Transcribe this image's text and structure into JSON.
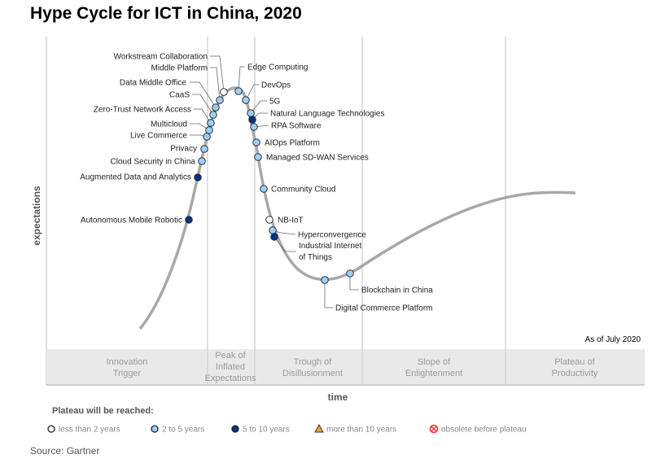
{
  "title": "Hype Cycle for ICT in China, 2020",
  "axes": {
    "y_label": "expectations",
    "x_label": "time"
  },
  "as_of": "As of July 2020",
  "phases": [
    {
      "lines": [
        "Innovation",
        "Trigger"
      ]
    },
    {
      "lines": [
        "Peak of",
        "Inflated",
        "Expectations"
      ]
    },
    {
      "lines": [
        "Trough of",
        "Disillusionment"
      ]
    },
    {
      "lines": [
        "Slope of",
        "Enlightenment"
      ]
    },
    {
      "lines": [
        "Plateau of",
        "Productivity"
      ]
    }
  ],
  "items": [
    {
      "name": "Workstream Collaboration",
      "plateau": "less than 2 years"
    },
    {
      "name": "Middle Platform",
      "plateau": "2 to 5 years"
    },
    {
      "name": "Data Middle Office",
      "plateau": "2 to 5 years"
    },
    {
      "name": "CaaS",
      "plateau": "2 to 5 years"
    },
    {
      "name": "Zero-Trust Network Access",
      "plateau": "2 to 5 years"
    },
    {
      "name": "Multicloud",
      "plateau": "2 to 5 years"
    },
    {
      "name": "Live Commerce",
      "plateau": "2 to 5 years"
    },
    {
      "name": "Privacy",
      "plateau": "2 to 5 years"
    },
    {
      "name": "Cloud Security in China",
      "plateau": "2 to 5 years"
    },
    {
      "name": "Augmented Data and Analytics",
      "plateau": "5 to 10 years"
    },
    {
      "name": "Autonomous Mobile Robotic",
      "plateau": "5 to 10 years"
    },
    {
      "name": "Edge Computing",
      "plateau": "2 to 5 years"
    },
    {
      "name": "DevOps",
      "plateau": "2 to 5 years"
    },
    {
      "name": "5G",
      "plateau": "2 to 5 years"
    },
    {
      "name": "Natural Language Technologies",
      "plateau": "5 to 10 years"
    },
    {
      "name": "RPA Software",
      "plateau": "2 to 5 years"
    },
    {
      "name": "AIOps Platform",
      "plateau": "2 to 5 years"
    },
    {
      "name": "Managed SD-WAN Services",
      "plateau": "2 to 5 years"
    },
    {
      "name": "Community Cloud",
      "plateau": "2 to 5 years"
    },
    {
      "name": "NB-IoT",
      "plateau": "less than 2 years"
    },
    {
      "name": "Hyperconvergence",
      "plateau": "2 to 5 years"
    },
    {
      "name": "Industrial Internet of Things",
      "plateau": "5 to 10 years"
    },
    {
      "name": "Blockchain in China",
      "plateau": "2 to 5 years"
    },
    {
      "name": "Digital Commerce Platform",
      "plateau": "2 to 5 years"
    }
  ],
  "legend": {
    "title": "Plateau will be reached:",
    "entries": [
      {
        "label": "less than 2 years",
        "color": "#ffffff",
        "shape": "circle"
      },
      {
        "label": "2 to 5 years",
        "color": "#9ccfff",
        "shape": "circle"
      },
      {
        "label": "5 to 10 years",
        "color": "#003087",
        "shape": "circle"
      },
      {
        "label": "more than 10 years",
        "color": "#f0a020",
        "shape": "triangle"
      },
      {
        "label": "obsolete before plateau",
        "color": "#e8383d",
        "shape": "crossed-circle"
      }
    ]
  },
  "source": "Source: Gartner"
}
